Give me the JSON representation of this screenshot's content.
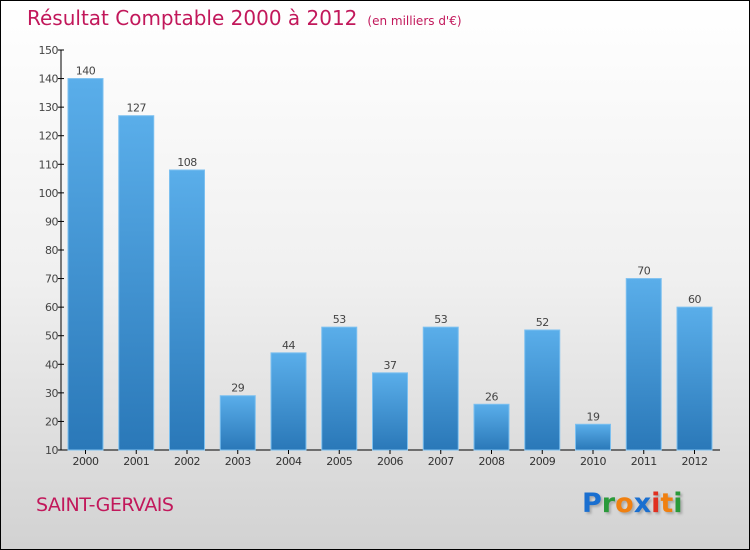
{
  "chart_data": {
    "type": "bar",
    "title": "Résultat Comptable 2000 à 2012",
    "subtitle": "(en milliers d'€)",
    "categories": [
      "2000",
      "2001",
      "2002",
      "2003",
      "2004",
      "2005",
      "2006",
      "2007",
      "2008",
      "2009",
      "2010",
      "2011",
      "2012"
    ],
    "values": [
      140,
      127,
      108,
      29,
      44,
      53,
      37,
      53,
      26,
      52,
      19,
      70,
      60
    ],
    "ylim": [
      10,
      150
    ],
    "yticks": [
      10,
      20,
      30,
      40,
      50,
      60,
      70,
      80,
      90,
      100,
      110,
      120,
      130,
      140,
      150
    ],
    "xlabel": "",
    "ylabel": "",
    "grid": false,
    "bar_color": "#4a9fe0"
  },
  "city": "SAINT-GERVAIS",
  "logo": "Proxiti"
}
